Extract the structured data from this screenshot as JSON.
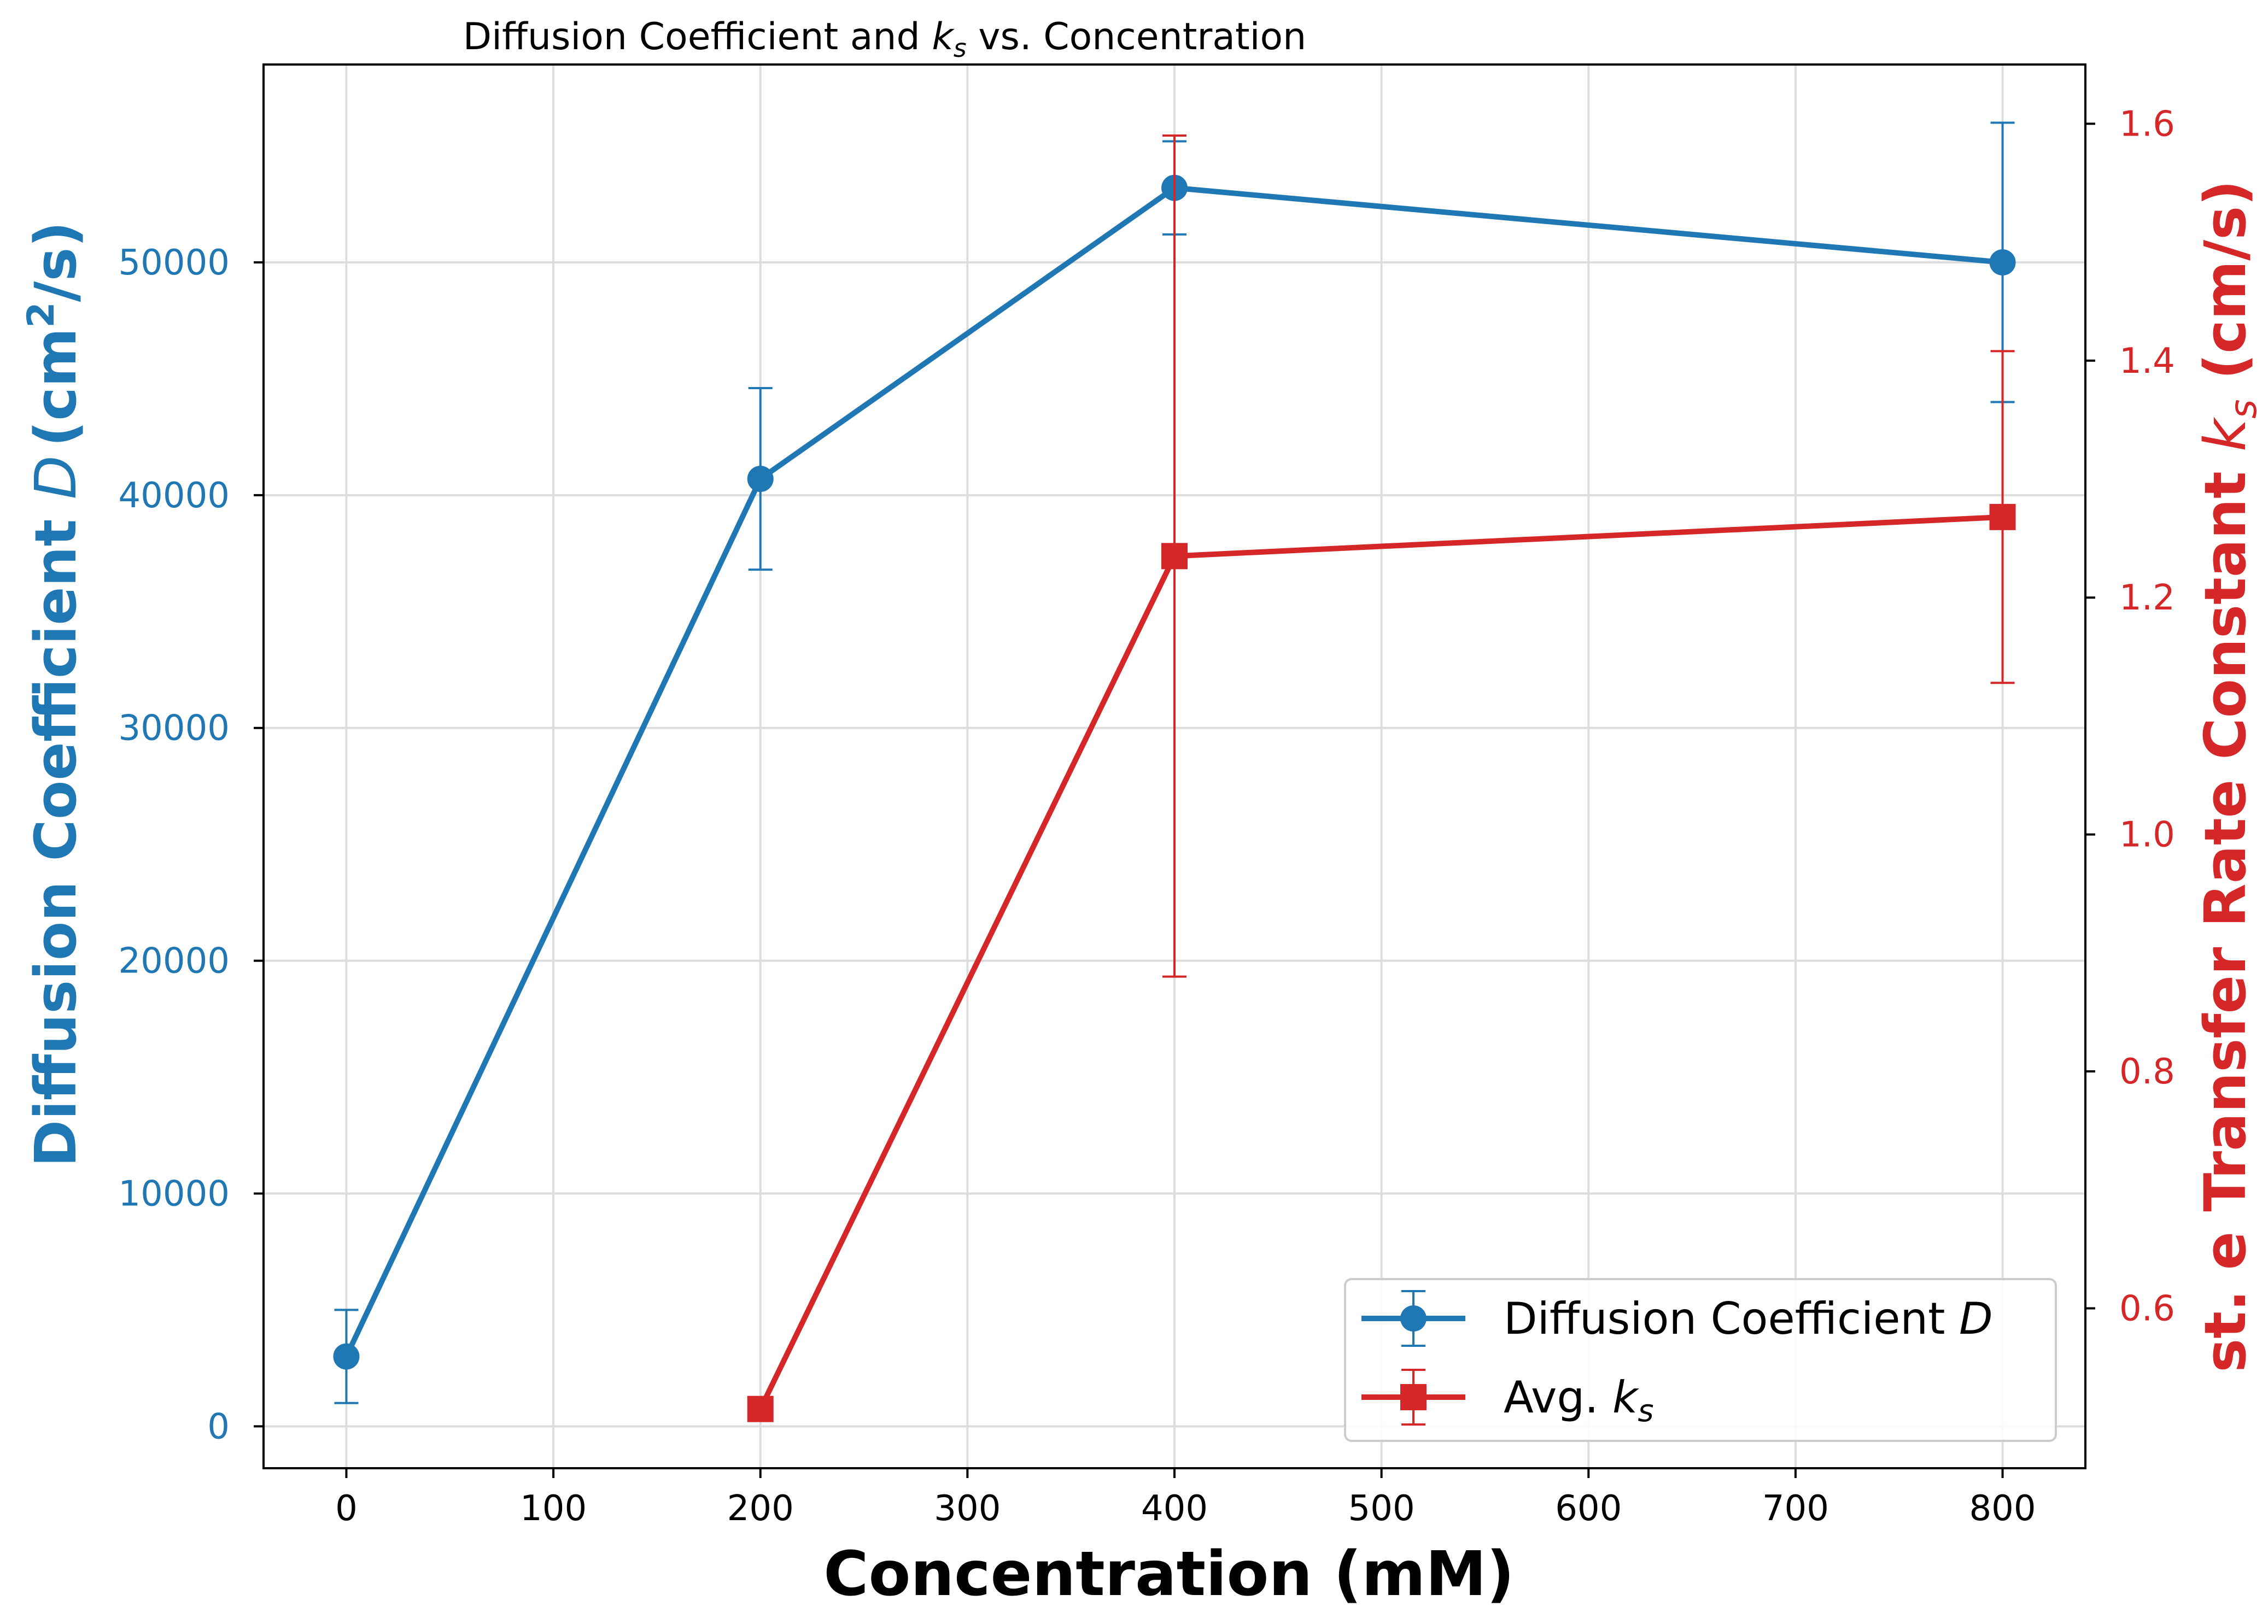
{
  "chart_data": {
    "type": "line",
    "title_parts": {
      "before": "Diffusion Coefficient and ",
      "k": "k",
      "sub": "s",
      "after": " vs. Concentration"
    },
    "xlabel": "Concentration (mM)",
    "ylabel_left": {
      "text": "Diffusion Coefficient ",
      "sym": "D",
      "unit": "(cm",
      "sup": "2",
      "unit_end": "/s)"
    },
    "ylabel_right": {
      "text": "st. e Transfer Rate Constant ",
      "k": "k",
      "sub": "s",
      "unit": " (cm/s)"
    },
    "x_ticks": [
      0,
      100,
      200,
      300,
      400,
      500,
      600,
      700,
      800
    ],
    "xlim": [
      -40,
      840
    ],
    "y_left_ticks": [
      0,
      10000,
      20000,
      30000,
      40000,
      50000
    ],
    "ylim_left": [
      -1800,
      58500
    ],
    "y_right_ticks": [
      0.6,
      0.8,
      1.0,
      1.2,
      1.4,
      1.6
    ],
    "ylim_right": [
      0.465,
      1.65
    ],
    "grid": true,
    "legend_placement": "lower right",
    "series": [
      {
        "name": "Diffusion Coefficient D",
        "legend_text": "Diffusion Coefficient ",
        "legend_sym": "D",
        "axis": "left",
        "color": "#1f77b4",
        "marker": "circle",
        "x": [
          0,
          200,
          400,
          800
        ],
        "y": [
          3000,
          40700,
          53200,
          50000
        ],
        "yerr": [
          2000,
          3900,
          2000,
          6000
        ]
      },
      {
        "name": "Avg. ks",
        "legend_text": "Avg. ",
        "legend_sym": "k",
        "legend_sub": "s",
        "axis": "right",
        "color": "#d62728",
        "marker": "square",
        "x": [
          200,
          400,
          800
        ],
        "y": [
          0.515,
          1.235,
          1.268
        ],
        "yerr": [
          0,
          0.355,
          0.14
        ]
      }
    ]
  }
}
